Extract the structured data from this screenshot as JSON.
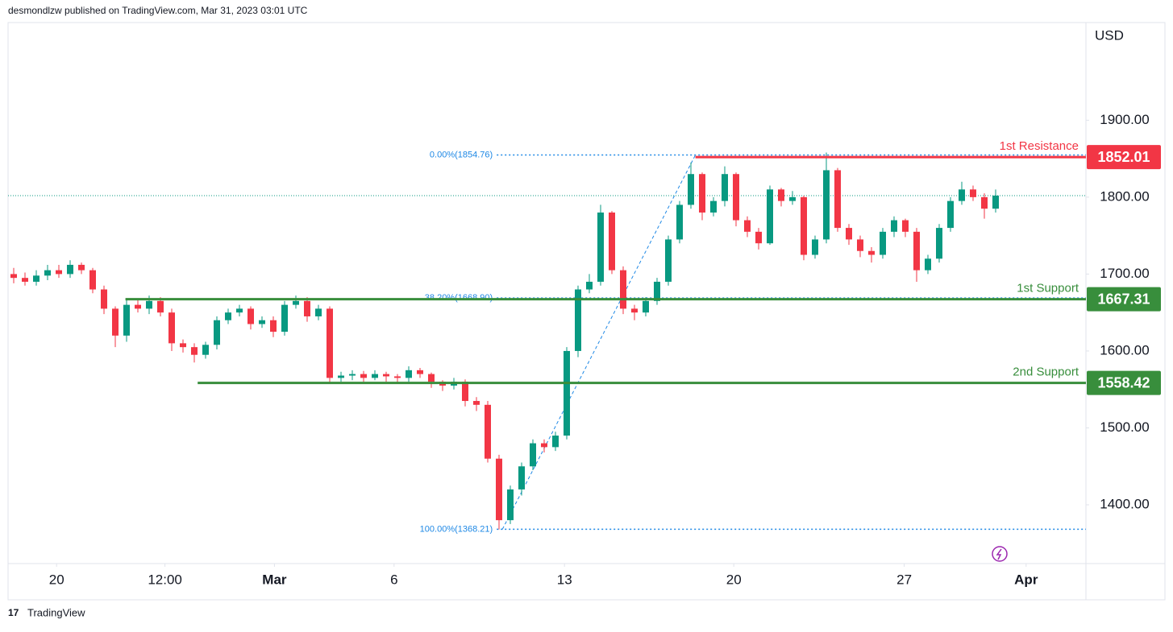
{
  "chart_data": {
    "type": "candlestick",
    "header": "desmondlzw published on TradingView.com, Mar 31, 2023 03:01 UTC",
    "currency": "USD",
    "brand": "TradingView",
    "up_color": "#089981",
    "down_color": "#f23645",
    "open": [
      1700,
      1695,
      1690,
      1698,
      1705,
      1700,
      1712,
      1705,
      1680,
      1655,
      1620,
      1660,
      1655,
      1665,
      1650,
      1610,
      1605,
      1595,
      1608,
      1640,
      1650,
      1655,
      1635,
      1640,
      1625,
      1660,
      1665,
      1645,
      1655,
      1565,
      1568,
      1570,
      1565,
      1570,
      1567,
      1565,
      1575,
      1570,
      1560,
      1555,
      1560,
      1535,
      1530,
      1460,
      1380,
      1420,
      1450,
      1480,
      1475,
      1490,
      1600,
      1680,
      1690,
      1780,
      1705,
      1655,
      1650,
      1665,
      1690,
      1745,
      1790,
      1830,
      1780,
      1795,
      1830,
      1770,
      1755,
      1740,
      1810,
      1795,
      1800,
      1725,
      1745,
      1835,
      1760,
      1745,
      1730,
      1725,
      1755,
      1770,
      1755,
      1705,
      1720,
      1760,
      1795,
      1810,
      1800,
      1785
    ],
    "high": [
      1708,
      1702,
      1705,
      1712,
      1712,
      1718,
      1715,
      1708,
      1685,
      1658,
      1668,
      1668,
      1672,
      1670,
      1655,
      1615,
      1610,
      1612,
      1645,
      1655,
      1660,
      1658,
      1645,
      1645,
      1665,
      1672,
      1670,
      1660,
      1658,
      1573,
      1575,
      1574,
      1575,
      1573,
      1570,
      1580,
      1578,
      1572,
      1562,
      1565,
      1563,
      1540,
      1535,
      1465,
      1425,
      1455,
      1485,
      1485,
      1495,
      1605,
      1685,
      1700,
      1790,
      1782,
      1710,
      1660,
      1670,
      1695,
      1750,
      1795,
      1845,
      1832,
      1800,
      1840,
      1832,
      1775,
      1760,
      1815,
      1812,
      1808,
      1802,
      1750,
      1858,
      1838,
      1765,
      1750,
      1735,
      1760,
      1775,
      1772,
      1760,
      1725,
      1765,
      1800,
      1820,
      1815,
      1805,
      1810
    ],
    "low": [
      1688,
      1685,
      1685,
      1692,
      1695,
      1695,
      1700,
      1675,
      1648,
      1605,
      1612,
      1650,
      1648,
      1645,
      1600,
      1598,
      1585,
      1590,
      1602,
      1635,
      1645,
      1628,
      1630,
      1618,
      1620,
      1655,
      1638,
      1640,
      1558,
      1560,
      1562,
      1560,
      1562,
      1560,
      1558,
      1560,
      1565,
      1552,
      1548,
      1550,
      1528,
      1522,
      1455,
      1368,
      1375,
      1412,
      1445,
      1468,
      1470,
      1485,
      1592,
      1675,
      1685,
      1700,
      1648,
      1640,
      1645,
      1660,
      1685,
      1740,
      1785,
      1770,
      1775,
      1788,
      1762,
      1748,
      1732,
      1738,
      1788,
      1790,
      1718,
      1720,
      1740,
      1755,
      1738,
      1722,
      1715,
      1720,
      1748,
      1748,
      1690,
      1700,
      1715,
      1755,
      1790,
      1795,
      1772,
      1780
    ],
    "close": [
      1695,
      1690,
      1698,
      1705,
      1700,
      1712,
      1705,
      1680,
      1655,
      1620,
      1660,
      1655,
      1665,
      1650,
      1610,
      1605,
      1595,
      1608,
      1640,
      1650,
      1655,
      1635,
      1640,
      1625,
      1660,
      1665,
      1645,
      1655,
      1565,
      1568,
      1570,
      1565,
      1570,
      1567,
      1565,
      1575,
      1570,
      1560,
      1555,
      1560,
      1535,
      1530,
      1460,
      1380,
      1420,
      1450,
      1480,
      1475,
      1490,
      1600,
      1680,
      1690,
      1780,
      1705,
      1655,
      1650,
      1665,
      1690,
      1745,
      1790,
      1830,
      1780,
      1795,
      1830,
      1770,
      1755,
      1740,
      1810,
      1795,
      1800,
      1725,
      1745,
      1835,
      1760,
      1745,
      1730,
      1725,
      1755,
      1770,
      1755,
      1705,
      1720,
      1760,
      1795,
      1810,
      1800,
      1785,
      1802
    ],
    "xlim": [
      -0.5,
      95
    ],
    "xticks": [
      {
        "value": 3.8,
        "label": "20"
      },
      {
        "value": 13.4,
        "label": "12:00"
      },
      {
        "value": 23.1,
        "label": "Mar"
      },
      {
        "value": 33.7,
        "label": "6"
      },
      {
        "value": 48.8,
        "label": "13"
      },
      {
        "value": 63.8,
        "label": "20"
      },
      {
        "value": 78.9,
        "label": "27"
      },
      {
        "value": 89.7,
        "label": "Apr"
      }
    ],
    "ylim": [
      1323.6,
      2027
    ],
    "yticks": [
      {
        "value": 1400,
        "label": "1400.00"
      },
      {
        "value": 1500,
        "label": "1500.00"
      },
      {
        "value": 1600,
        "label": "1600.00"
      },
      {
        "value": 1700,
        "label": "1700.00"
      },
      {
        "value": 1800,
        "label": "1800.00"
      },
      {
        "value": 1900,
        "label": "1900.00"
      }
    ],
    "levels": [
      {
        "name": "1st Resistance",
        "value": 1852.01,
        "label": "1852.01",
        "color": "#f23645",
        "start": 60.4
      },
      {
        "name": "1st Support",
        "value": 1667.31,
        "label": "1667.31",
        "color": "#388e3c",
        "start": 9.9
      },
      {
        "name": "2nd Support",
        "value": 1558.42,
        "label": "1558.42",
        "color": "#388e3c",
        "start": 16.3
      }
    ],
    "fib": {
      "color": "#1e88e5",
      "start": 42.8,
      "levels": [
        {
          "value": 1854.76,
          "label": "0.00%(1854.76)"
        },
        {
          "value": 1668.9,
          "label": "38.20%(1668.90)"
        },
        {
          "value": 1368.21,
          "label": "100.00%(1368.21)"
        }
      ]
    },
    "last_price": 1802
  }
}
